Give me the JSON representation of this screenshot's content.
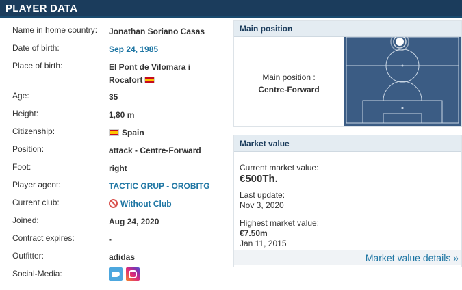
{
  "header": {
    "title": "PLAYER DATA"
  },
  "player": {
    "rows": [
      {
        "label": "Name in home country:",
        "value": "Jonathan Soriano Casas"
      },
      {
        "label": "Date of birth:",
        "value": "Sep 24, 1985"
      },
      {
        "label": "Place of birth:",
        "value": "El Pont de Vilomara i Rocafort"
      },
      {
        "label": "Age:",
        "value": "35"
      },
      {
        "label": "Height:",
        "value": "1,80 m"
      },
      {
        "label": "Citizenship:",
        "value": "Spain"
      },
      {
        "label": "Position:",
        "value": "attack - Centre-Forward"
      },
      {
        "label": "Foot:",
        "value": "right"
      },
      {
        "label": "Player agent:",
        "value": "TACTIC GRUP - OROBITG"
      },
      {
        "label": "Current club:",
        "value": "Without Club"
      },
      {
        "label": "Joined:",
        "value": "Aug 24, 2020"
      },
      {
        "label": "Contract expires:",
        "value": "-"
      },
      {
        "label": "Outfitter:",
        "value": "adidas"
      },
      {
        "label": "Social-Media:",
        "value": ""
      }
    ]
  },
  "icons": {
    "flag": "spain-flag-icon",
    "no_club": "no-club-icon",
    "social": [
      "twitter-icon",
      "instagram-icon"
    ]
  },
  "colors": {
    "header_bg": "#1b3c5c",
    "link": "#1d75a3",
    "pitch": "#3b5c84",
    "panel_head": "#e4ecf2"
  },
  "main_position": {
    "heading": "Main position",
    "label": "Main position :",
    "value": "Centre-Forward"
  },
  "market_value": {
    "heading": "Market value",
    "current_label": "Current market value:",
    "current_value": "€500Th.",
    "last_update_label": "Last update:",
    "last_update_value": "Nov 3, 2020",
    "highest_label": "Highest market value:",
    "highest_value": "€7.50m",
    "highest_date": "Jan 11, 2015",
    "details_link": "Market value details »"
  }
}
